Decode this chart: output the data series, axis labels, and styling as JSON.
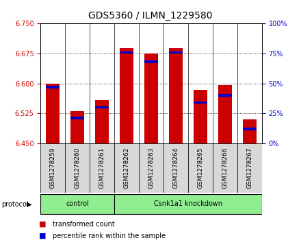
{
  "title": "GDS5360 / ILMN_1229580",
  "samples": [
    "GSM1278259",
    "GSM1278260",
    "GSM1278261",
    "GSM1278262",
    "GSM1278263",
    "GSM1278264",
    "GSM1278265",
    "GSM1278266",
    "GSM1278267"
  ],
  "transformed_count": [
    6.6,
    6.53,
    6.558,
    6.688,
    6.675,
    6.688,
    6.584,
    6.596,
    6.51
  ],
  "percentile_rank": [
    47,
    21,
    30,
    76,
    68,
    76,
    34,
    40,
    12
  ],
  "ylim_left": [
    6.45,
    6.75
  ],
  "ylim_right": [
    0,
    100
  ],
  "yticks_left": [
    6.45,
    6.525,
    6.6,
    6.675,
    6.75
  ],
  "yticks_right": [
    0,
    25,
    50,
    75,
    100
  ],
  "bar_color": "#cc0000",
  "percentile_color": "#0000cc",
  "base_value": 6.45,
  "protocol_groups": [
    {
      "label": "control",
      "start": 0,
      "end": 3
    },
    {
      "label": "Csnk1a1 knockdown",
      "start": 3,
      "end": 9
    }
  ],
  "protocol_label": "protocol",
  "legend_items": [
    {
      "color": "#cc0000",
      "label": "transformed count"
    },
    {
      "color": "#0000cc",
      "label": "percentile rank within the sample"
    }
  ],
  "title_fontsize": 10,
  "tick_fontsize": 7,
  "label_fontsize": 7,
  "sample_fontsize": 6.5,
  "protocol_bg_color": "#90EE90",
  "plot_bg_color": "#d8d8d8",
  "bar_width": 0.55
}
